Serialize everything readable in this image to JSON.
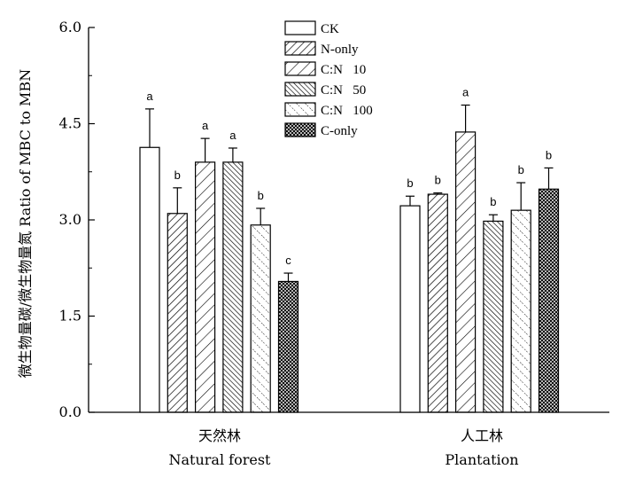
{
  "chart_data": {
    "type": "bar",
    "ylabel": "微生物量碳/微生物量氮 Ratio of MBC to MBN",
    "ylim": [
      0,
      6
    ],
    "yticks": [
      "0.0",
      "1.5",
      "3.0",
      "4.5",
      "6.0"
    ],
    "ytick_values": [
      0,
      1.5,
      3.0,
      4.5,
      6.0
    ],
    "categories": [
      {
        "zh": "天然林",
        "en": "Natural forest"
      },
      {
        "zh": "人工林",
        "en": "Plantation"
      }
    ],
    "series": [
      {
        "name": "CK",
        "pattern": "none",
        "values": [
          4.13,
          3.22
        ],
        "errors": [
          0.6,
          0.15
        ],
        "letters": [
          "a",
          "b"
        ]
      },
      {
        "name": "N-only",
        "pattern": "diag-sparse",
        "values": [
          3.1,
          3.4
        ],
        "errors": [
          0.4,
          0.02
        ],
        "letters": [
          "b",
          "b"
        ]
      },
      {
        "name": "C:N   10",
        "pattern": "diag-wide",
        "values": [
          3.9,
          4.37
        ],
        "errors": [
          0.37,
          0.42
        ],
        "letters": [
          "a",
          "a"
        ]
      },
      {
        "name": "C:N   50",
        "pattern": "anti-dense",
        "values": [
          3.9,
          2.98
        ],
        "errors": [
          0.22,
          0.1
        ],
        "letters": [
          "a",
          "b"
        ]
      },
      {
        "name": "C:N   100",
        "pattern": "anti-sparse",
        "values": [
          2.92,
          3.15
        ],
        "errors": [
          0.26,
          0.43
        ],
        "letters": [
          "b",
          "b"
        ]
      },
      {
        "name": "C-only",
        "pattern": "cross",
        "values": [
          2.04,
          3.48
        ],
        "errors": [
          0.13,
          0.33
        ],
        "letters": [
          "c",
          "b"
        ]
      }
    ],
    "legend_position": "top-center"
  }
}
